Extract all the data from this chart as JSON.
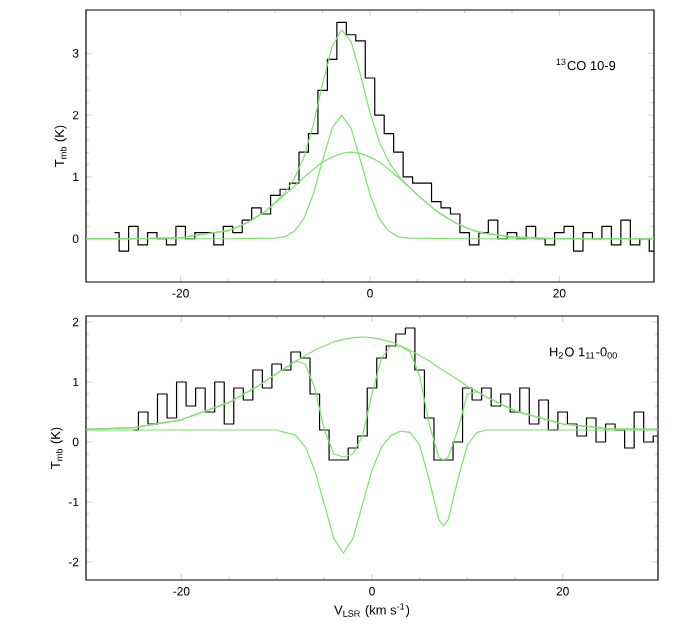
{
  "chart_data": [
    {
      "type": "line",
      "ylabel": "T$_{mb}$ (K)",
      "annotations": [
        "$^{13}$CO 10-9"
      ],
      "xlim": [
        -30,
        30
      ],
      "ylim": [
        -0.7,
        3.7
      ],
      "xticks": [
        -20,
        0,
        20
      ],
      "yticks": [
        0,
        1,
        2,
        3
      ],
      "series": [
        {
          "type": "step",
          "color": "#000000",
          "x": [
            -27,
            -26,
            -25,
            -24,
            -23,
            -22,
            -21,
            -20,
            -19,
            -18,
            -17,
            -16,
            -15,
            -14,
            -13,
            -12,
            -11,
            -10,
            -9,
            -8,
            -7,
            -6,
            -5,
            -4,
            -3,
            -2,
            -1,
            0,
            1,
            2,
            3,
            4,
            5,
            6,
            7,
            8,
            9,
            10,
            11,
            12,
            13,
            14,
            15,
            16,
            17,
            18,
            19,
            20,
            21,
            22,
            23,
            24,
            25,
            26,
            27,
            28,
            29,
            30
          ],
          "values": [
            0.1,
            -0.2,
            0.2,
            -0.1,
            0.1,
            0.0,
            -0.1,
            0.2,
            0.0,
            0.1,
            0.1,
            -0.1,
            0.2,
            0.1,
            0.3,
            0.5,
            0.4,
            0.7,
            0.8,
            0.9,
            1.4,
            1.7,
            2.4,
            2.9,
            3.5,
            3.3,
            3.2,
            2.6,
            2.0,
            1.7,
            1.4,
            1.0,
            0.9,
            0.9,
            0.6,
            0.5,
            0.4,
            0.1,
            -0.1,
            0.1,
            0.3,
            0.0,
            0.1,
            0.0,
            0.2,
            0.0,
            -0.1,
            0.1,
            0.2,
            -0.2,
            0.1,
            0.0,
            0.2,
            -0.1,
            0.3,
            -0.1,
            0.0,
            -0.2
          ]
        },
        {
          "color": "#80e070",
          "x": [
            -30,
            -25,
            -20,
            -15,
            -14,
            -13,
            -12,
            -11,
            -10,
            -9,
            -8,
            -7,
            -6,
            -5,
            -4,
            -3,
            -2,
            -1,
            0,
            1,
            2,
            3,
            4,
            5,
            6,
            7,
            8,
            9,
            10,
            11,
            12,
            15,
            20,
            25,
            30
          ],
          "values": [
            0,
            0,
            0.02,
            0.13,
            0.19,
            0.26,
            0.35,
            0.45,
            0.59,
            0.74,
            0.97,
            1.31,
            1.84,
            2.51,
            3.11,
            3.38,
            3.19,
            2.65,
            2.04,
            1.56,
            1.24,
            1.02,
            0.86,
            0.71,
            0.58,
            0.45,
            0.35,
            0.26,
            0.19,
            0.13,
            0.09,
            0.03,
            0,
            0,
            0
          ]
        },
        {
          "color": "#80e070",
          "x": [
            -30,
            -15,
            -10,
            -9,
            -8,
            -7,
            -6,
            -5,
            -4,
            -3,
            -2,
            -1,
            0,
            1,
            2,
            3,
            4,
            10,
            30
          ],
          "values": [
            0,
            0,
            0.01,
            0.03,
            0.12,
            0.32,
            0.72,
            1.27,
            1.79,
            2.0,
            1.79,
            1.27,
            0.72,
            0.32,
            0.12,
            0.03,
            0.01,
            0,
            0
          ]
        },
        {
          "color": "#80e070",
          "x": [
            -30,
            -25,
            -20,
            -15,
            -14,
            -13,
            -12,
            -11,
            -10,
            -9,
            -8,
            -7,
            -6,
            -5,
            -4,
            -3,
            -2,
            -1,
            0,
            1,
            2,
            3,
            4,
            5,
            6,
            7,
            8,
            9,
            10,
            11,
            12,
            15,
            20,
            25,
            30
          ],
          "values": [
            0,
            0,
            0.02,
            0.13,
            0.19,
            0.26,
            0.35,
            0.45,
            0.58,
            0.71,
            0.85,
            0.99,
            1.12,
            1.24,
            1.32,
            1.38,
            1.4,
            1.38,
            1.32,
            1.24,
            1.12,
            0.99,
            0.85,
            0.71,
            0.58,
            0.45,
            0.35,
            0.26,
            0.19,
            0.13,
            0.09,
            0.03,
            0,
            0,
            0
          ]
        }
      ]
    },
    {
      "type": "line",
      "xlabel": "V$_{LSR}$ (km s$^{-1}$)",
      "ylabel": "T$_{mb}$ (K)",
      "annotations": [
        "H$_{2}$O 1$_{11}$-0$_{00}$"
      ],
      "xlim": [
        -30,
        30
      ],
      "ylim": [
        -2.3,
        2.1
      ],
      "xticks": [
        -20,
        0,
        20
      ],
      "yticks": [
        -2,
        -1,
        0,
        1,
        2
      ],
      "series": [
        {
          "type": "step",
          "color": "#000000",
          "x": [
            -25,
            -24,
            -23,
            -22,
            -21,
            -20,
            -19,
            -18,
            -17,
            -16,
            -15,
            -14,
            -13,
            -12,
            -11,
            -10,
            -9,
            -8,
            -7,
            -6,
            -5,
            -4,
            -3,
            -2,
            -1,
            0,
            1,
            2,
            3,
            4,
            5,
            6,
            7,
            8,
            9,
            10,
            11,
            12,
            13,
            14,
            15,
            16,
            17,
            18,
            19,
            20,
            21,
            22,
            23,
            24,
            25,
            26,
            27,
            28,
            29,
            30
          ],
          "values": [
            0.2,
            0.5,
            0.3,
            0.8,
            0.4,
            1.0,
            0.6,
            0.9,
            0.5,
            1.0,
            0.3,
            0.9,
            0.7,
            1.2,
            0.9,
            1.3,
            1.2,
            1.5,
            1.4,
            0.8,
            0.2,
            -0.3,
            -0.3,
            -0.1,
            0.1,
            0.9,
            1.4,
            1.6,
            1.8,
            1.9,
            1.2,
            0.4,
            -0.3,
            -0.3,
            0.0,
            0.9,
            0.7,
            0.9,
            0.6,
            0.8,
            0.5,
            0.9,
            0.3,
            0.7,
            0.2,
            0.5,
            0.3,
            0.1,
            0.4,
            0.0,
            0.3,
            0.2,
            -0.1,
            0.5,
            0.0,
            0.1
          ]
        },
        {
          "color": "#80e070",
          "x": [
            -30,
            -25,
            -20,
            -15,
            -12,
            -10,
            -8,
            -7,
            -6,
            -5,
            -4,
            -3,
            -2,
            -1,
            0,
            1,
            2,
            3,
            4,
            5,
            6,
            7,
            7.5,
            8,
            9,
            10,
            11,
            12,
            15,
            20,
            25,
            30
          ],
          "values": [
            0.21,
            0.24,
            0.37,
            0.66,
            0.93,
            1.14,
            1.35,
            1.3,
            0.9,
            0.2,
            -0.2,
            -0.25,
            -0.2,
            0.1,
            0.8,
            1.4,
            1.6,
            1.6,
            1.5,
            1.1,
            0.3,
            -0.25,
            -0.3,
            -0.25,
            0.2,
            0.8,
            0.84,
            0.75,
            0.52,
            0.3,
            0.22,
            0.21
          ]
        },
        {
          "color": "#80e070",
          "x": [
            -30,
            -25,
            -20,
            -15,
            -12,
            -10,
            -8,
            -7,
            -6,
            -5,
            -4,
            -3,
            -2,
            -1,
            0,
            1,
            2,
            3,
            4,
            5,
            6,
            7,
            8,
            9,
            10,
            11,
            12,
            15,
            20,
            25,
            30
          ],
          "values": [
            0.21,
            0.24,
            0.37,
            0.66,
            0.93,
            1.14,
            1.35,
            1.44,
            1.53,
            1.6,
            1.67,
            1.71,
            1.74,
            1.75,
            1.74,
            1.71,
            1.67,
            1.6,
            1.53,
            1.44,
            1.35,
            1.24,
            1.14,
            1.04,
            0.93,
            0.84,
            0.75,
            0.52,
            0.3,
            0.22,
            0.21
          ]
        },
        {
          "color": "#80e070",
          "x": [
            -30,
            -10,
            -8,
            -7,
            -6,
            -5,
            -4,
            -3,
            -2,
            -1,
            0,
            1,
            2,
            3,
            4,
            5,
            6,
            7,
            7.5,
            8,
            9,
            10,
            11,
            12,
            30
          ],
          "values": [
            0.2,
            0.2,
            0.11,
            -0.08,
            -0.47,
            -1.04,
            -1.61,
            -1.85,
            -1.61,
            -1.04,
            -0.47,
            -0.08,
            0.11,
            0.18,
            0.16,
            -0.05,
            -0.63,
            -1.29,
            -1.4,
            -1.29,
            -0.63,
            -0.05,
            0.16,
            0.2,
            0.2
          ]
        }
      ]
    }
  ]
}
